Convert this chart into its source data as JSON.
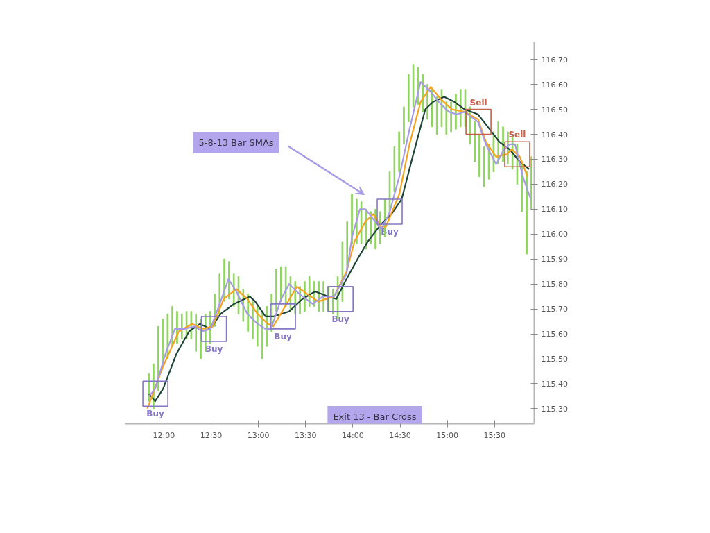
{
  "chart_data": {
    "type": "line",
    "grid": false,
    "line_style": "solid",
    "xlim": [
      11.59,
      15.92
    ],
    "ylim": [
      115.24,
      116.77
    ],
    "xticks": [
      {
        "value": 12,
        "label": "12:00"
      },
      {
        "value": 12.5,
        "label": "12:30"
      },
      {
        "value": 13,
        "label": "13:00"
      },
      {
        "value": 13.5,
        "label": "13:30"
      },
      {
        "value": 14,
        "label": "14:00"
      },
      {
        "value": 14.5,
        "label": "14:30"
      },
      {
        "value": 15,
        "label": "15:00"
      },
      {
        "value": 15.5,
        "label": "15:30"
      }
    ],
    "yticks": [
      {
        "value": 115.3,
        "label": "115.30"
      },
      {
        "value": 115.4,
        "label": "115.40"
      },
      {
        "value": 115.5,
        "label": "115.50"
      },
      {
        "value": 115.6,
        "label": "115.60"
      },
      {
        "value": 115.7,
        "label": "115.70"
      },
      {
        "value": 115.8,
        "label": "115.80"
      },
      {
        "value": 115.9,
        "label": "115.90"
      },
      {
        "value": 116.0,
        "label": "116.00"
      },
      {
        "value": 116.1,
        "label": "116.10"
      },
      {
        "value": 116.2,
        "label": "116.20"
      },
      {
        "value": 116.3,
        "label": "116.30"
      },
      {
        "value": 116.4,
        "label": "116.40"
      },
      {
        "value": 116.5,
        "label": "116.50"
      },
      {
        "value": 116.6,
        "label": "116.60"
      },
      {
        "value": 116.7,
        "label": "116.70"
      }
    ],
    "series": [
      {
        "type": "bar",
        "color": "#8fd45f",
        "x": [
          11.84,
          11.89,
          11.94,
          11.99,
          12.04,
          12.09,
          12.14,
          12.19,
          12.24,
          12.29,
          12.34,
          12.39,
          12.44,
          12.49,
          12.54,
          12.59,
          12.64,
          12.69,
          12.74,
          12.79,
          12.84,
          12.89,
          12.94,
          12.99,
          13.04,
          13.09,
          13.14,
          13.19,
          13.24,
          13.29,
          13.34,
          13.39,
          13.44,
          13.49,
          13.54,
          13.59,
          13.64,
          13.69,
          13.74,
          13.79,
          13.84,
          13.89,
          13.94,
          13.99,
          14.04,
          14.09,
          14.14,
          14.19,
          14.24,
          14.29,
          14.34,
          14.39,
          14.44,
          14.49,
          14.54,
          14.59,
          14.64,
          14.69,
          14.74,
          14.79,
          14.84,
          14.89,
          14.94,
          14.99,
          15.04,
          15.09,
          15.14,
          15.19,
          15.24,
          15.29,
          15.34,
          15.39,
          15.44,
          15.49,
          15.54,
          15.59,
          15.64,
          15.69,
          15.74,
          15.79,
          15.84,
          15.89
        ],
        "base": [
          115.33,
          115.3,
          115.37,
          115.47,
          115.5,
          115.55,
          115.56,
          115.58,
          115.58,
          115.58,
          115.53,
          115.5,
          115.53,
          115.56,
          115.63,
          115.68,
          115.73,
          115.74,
          115.71,
          115.68,
          115.65,
          115.61,
          115.58,
          115.55,
          115.5,
          115.55,
          115.61,
          115.69,
          115.73,
          115.71,
          115.69,
          115.68,
          115.68,
          115.69,
          115.71,
          115.71,
          115.69,
          115.69,
          115.69,
          115.68,
          115.66,
          115.73,
          115.86,
          115.96,
          115.96,
          115.96,
          115.94,
          115.96,
          115.94,
          115.96,
          115.99,
          116.09,
          116.17,
          116.25,
          116.36,
          116.45,
          116.51,
          116.52,
          116.49,
          116.46,
          116.43,
          116.4,
          116.43,
          116.4,
          116.41,
          116.42,
          116.43,
          116.43,
          116.36,
          116.29,
          116.23,
          116.19,
          116.22,
          116.25,
          116.28,
          116.29,
          116.28,
          116.26,
          116.2,
          116.09,
          115.92,
          116.1
        ],
        "values": [
          0.11,
          0.18,
          0.26,
          0.19,
          0.18,
          0.16,
          0.13,
          0.1,
          0.11,
          0.11,
          0.15,
          0.16,
          0.15,
          0.13,
          0.13,
          0.16,
          0.17,
          0.15,
          0.13,
          0.15,
          0.13,
          0.15,
          0.15,
          0.16,
          0.19,
          0.16,
          0.15,
          0.17,
          0.14,
          0.16,
          0.14,
          0.13,
          0.11,
          0.12,
          0.12,
          0.1,
          0.12,
          0.12,
          0.1,
          0.1,
          0.17,
          0.24,
          0.19,
          0.2,
          0.18,
          0.17,
          0.16,
          0.13,
          0.16,
          0.13,
          0.15,
          0.16,
          0.18,
          0.16,
          0.15,
          0.19,
          0.17,
          0.15,
          0.15,
          0.14,
          0.15,
          0.15,
          0.15,
          0.13,
          0.12,
          0.14,
          0.15,
          0.15,
          0.15,
          0.16,
          0.17,
          0.16,
          0.14,
          0.16,
          0.17,
          0.14,
          0.13,
          0.13,
          0.16,
          0.2,
          0.33,
          0.21
        ]
      },
      {
        "color": "#1f4538",
        "x": [
          11.842,
          11.908,
          11.992,
          12.133,
          12.267,
          12.383,
          12.492,
          12.6,
          12.742,
          12.908,
          12.967,
          13.075,
          13.158,
          13.325,
          13.467,
          13.6,
          13.742,
          13.825,
          13.933,
          14.05,
          14.158,
          14.3,
          14.408,
          14.517,
          14.633,
          14.767,
          14.85,
          14.967,
          15.075,
          15.183,
          15.325,
          15.408,
          15.55,
          15.658,
          15.767,
          15.867
        ],
        "values": [
          115.36,
          115.33,
          115.38,
          115.52,
          115.61,
          115.64,
          115.62,
          115.68,
          115.72,
          115.75,
          115.73,
          115.67,
          115.67,
          115.69,
          115.74,
          115.77,
          115.75,
          115.74,
          115.82,
          115.9,
          115.97,
          116.04,
          116.08,
          116.14,
          116.31,
          116.5,
          116.53,
          116.55,
          116.53,
          116.5,
          116.48,
          116.44,
          116.37,
          116.34,
          116.29,
          116.26
        ]
      },
      {
        "color": "#f7a21b",
        "x": [
          11.825,
          11.992,
          12.158,
          12.3,
          12.408,
          12.517,
          12.633,
          12.767,
          12.883,
          12.992,
          13.1,
          13.158,
          13.267,
          13.408,
          13.517,
          13.633,
          13.8,
          13.933,
          14.017,
          14.133,
          14.217,
          14.3,
          14.35,
          14.492,
          14.6,
          14.717,
          14.825,
          14.933,
          15.05,
          15.183,
          15.325,
          15.408,
          15.517,
          15.633,
          15.683,
          15.767,
          15.85
        ],
        "values": [
          115.3,
          115.47,
          115.61,
          115.64,
          115.62,
          115.63,
          115.74,
          115.78,
          115.74,
          115.68,
          115.64,
          115.63,
          115.7,
          115.79,
          115.76,
          115.73,
          115.75,
          115.85,
          115.97,
          116.05,
          116.08,
          116.03,
          116.03,
          116.16,
          116.36,
          116.53,
          116.59,
          116.54,
          116.5,
          116.49,
          116.46,
          116.37,
          116.31,
          116.32,
          116.34,
          116.31,
          116.23
        ]
      },
      {
        "color": "#a89be6",
        "x": [
          11.842,
          11.908,
          12.017,
          12.117,
          12.217,
          12.325,
          12.408,
          12.492,
          12.6,
          12.683,
          12.767,
          12.883,
          12.992,
          13.075,
          13.133,
          13.242,
          13.325,
          13.433,
          13.575,
          13.683,
          13.8,
          13.933,
          13.992,
          14.075,
          14.133,
          14.217,
          14.3,
          14.383,
          14.492,
          14.6,
          14.717,
          14.825,
          14.908,
          15.017,
          15.1,
          15.183,
          15.325,
          15.408,
          15.517,
          15.6,
          15.658,
          15.717,
          15.8,
          15.883
        ],
        "values": [
          115.35,
          115.38,
          115.52,
          115.62,
          115.62,
          115.63,
          115.61,
          115.62,
          115.73,
          115.82,
          115.77,
          115.68,
          115.64,
          115.62,
          115.62,
          115.74,
          115.8,
          115.76,
          115.72,
          115.75,
          115.75,
          115.84,
          115.99,
          116.1,
          116.1,
          116.06,
          116.02,
          116.08,
          116.23,
          116.42,
          116.61,
          116.57,
          116.53,
          116.49,
          116.48,
          116.49,
          116.45,
          116.36,
          116.28,
          116.34,
          116.36,
          116.36,
          116.23,
          116.14
        ]
      },
      {
        "type": "scatter",
        "name": "Buy",
        "marker": "square",
        "color": "#8577c4",
        "x": [
          11.91,
          12.53,
          13.26,
          13.87,
          14.39
        ],
        "values": [
          115.36,
          115.62,
          115.67,
          115.74,
          116.09
        ]
      },
      {
        "type": "scatter",
        "name": "Sell",
        "marker": "square",
        "color": "#c8604a",
        "x": [
          15.33,
          15.74
        ],
        "values": [
          116.45,
          116.32
        ]
      }
    ],
    "annotations": [
      "5-8-13 Bar SMAs",
      "Exit 13 - Bar Cross"
    ]
  }
}
